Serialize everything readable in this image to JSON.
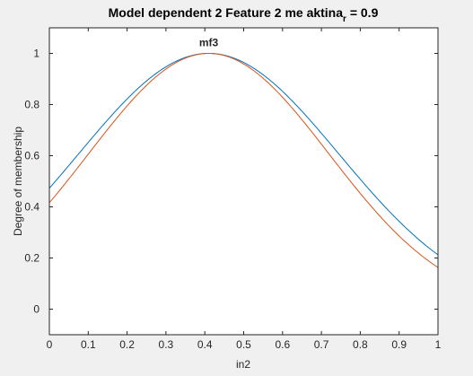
{
  "window": {
    "background": "#f0f0f0"
  },
  "chart_data": {
    "type": "line",
    "title": "Model dependent 2 Feature 2 me aktina",
    "title_subscript": "r",
    "title_suffix": " = 0.9",
    "xlabel": "in2",
    "ylabel": "Degree of membership",
    "xlim": [
      0,
      1
    ],
    "ylim": [
      -0.1,
      1.1
    ],
    "xticks": [
      0,
      0.1,
      0.2,
      0.3,
      0.4,
      0.5,
      0.6,
      0.7,
      0.8,
      0.9,
      1
    ],
    "xtick_labels": [
      "0",
      "0.1",
      "0.2",
      "0.3",
      "0.4",
      "0.5",
      "0.6",
      "0.7",
      "0.8",
      "0.9",
      "1"
    ],
    "yticks": [
      0,
      0.2,
      0.4,
      0.6,
      0.8,
      1
    ],
    "ytick_labels": [
      "0",
      "0.2",
      "0.4",
      "0.6",
      "0.8",
      "1"
    ],
    "grid": false,
    "annotations": [
      {
        "text": "mf3",
        "x": 0.41,
        "y": 1.0
      }
    ],
    "series": [
      {
        "color": "#0072bd",
        "shape": "gaussian",
        "center": 0.41,
        "sigma": 0.3351,
        "x": [
          0,
          0.1,
          0.2,
          0.3,
          0.4,
          0.41,
          0.5,
          0.6,
          0.7,
          0.8,
          0.9,
          1
        ],
        "y": [
          0.473,
          0.652,
          0.822,
          0.947,
          1.0,
          1.0,
          0.965,
          0.851,
          0.688,
          0.508,
          0.343,
          0.212
        ]
      },
      {
        "color": "#d95319",
        "shape": "gaussian",
        "center": 0.41,
        "sigma": 0.3097,
        "x": [
          0,
          0.1,
          0.2,
          0.3,
          0.4,
          0.41,
          0.5,
          0.6,
          0.7,
          0.8,
          0.9,
          1
        ],
        "y": [
          0.417,
          0.606,
          0.794,
          0.939,
          0.999,
          1.0,
          0.958,
          0.828,
          0.645,
          0.452,
          0.286,
          0.163
        ]
      }
    ]
  }
}
